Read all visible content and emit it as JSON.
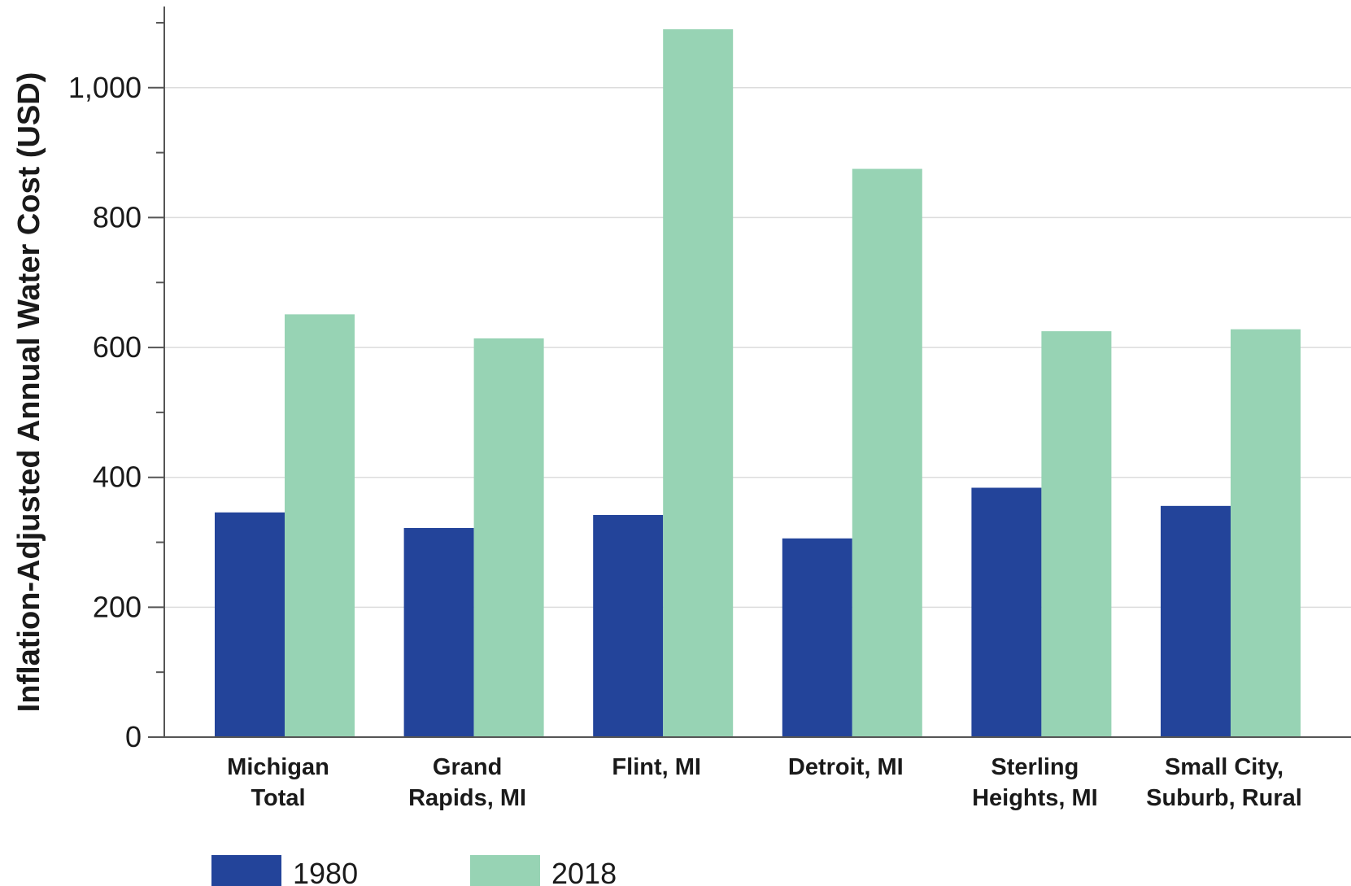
{
  "chart_data": {
    "type": "bar",
    "title": "",
    "xlabel": "",
    "ylabel": "Inflation-Adjusted Annual Water Cost (USD)",
    "categories": [
      [
        "Michigan",
        "Total"
      ],
      [
        "Grand",
        "Rapids, MI"
      ],
      [
        "Flint, MI"
      ],
      [
        "Detroit, MI"
      ],
      [
        "Sterling",
        "Heights, MI"
      ],
      [
        "Small City,",
        "Suburb, Rural"
      ]
    ],
    "series": [
      {
        "name": "1980",
        "color": "#23449a",
        "values": [
          346,
          322,
          342,
          306,
          384,
          356
        ]
      },
      {
        "name": "2018",
        "color": "#97d3b4",
        "values": [
          651,
          614,
          1090,
          875,
          625,
          628
        ]
      }
    ],
    "ylim": [
      0,
      1125
    ],
    "yticks": [
      0,
      200,
      400,
      600,
      800,
      1000
    ],
    "ytick_labels": [
      "0",
      "200",
      "400",
      "600",
      "800",
      "1,000"
    ],
    "grid": true,
    "legend": "bottom-left"
  }
}
